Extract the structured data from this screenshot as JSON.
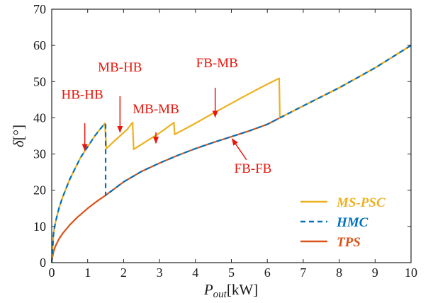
{
  "chart_data": {
    "type": "line",
    "xlim": [
      0,
      10
    ],
    "ylim": [
      0,
      70
    ],
    "xticks": [
      0,
      1,
      2,
      3,
      4,
      5,
      6,
      7,
      8,
      9,
      10
    ],
    "yticks": [
      0,
      10,
      20,
      30,
      40,
      50,
      60,
      70
    ],
    "xlabel_main": "P",
    "xlabel_sub": "out",
    "xlabel_unit": "[kW]",
    "ylabel_symbol": "δ",
    "ylabel_unit": "[°]",
    "grid": false,
    "legend_position": "bottom-right",
    "series": [
      {
        "name": "MS-PSC",
        "color": "#EDB120",
        "dash": "solid",
        "points": [
          [
            0,
            0
          ],
          [
            0.05,
            8
          ],
          [
            0.1,
            11
          ],
          [
            0.2,
            15
          ],
          [
            0.3,
            18
          ],
          [
            0.4,
            20.5
          ],
          [
            0.5,
            23
          ],
          [
            0.6,
            25
          ],
          [
            0.7,
            27
          ],
          [
            0.8,
            29
          ],
          [
            0.9,
            30.5
          ],
          [
            1.0,
            32
          ],
          [
            1.1,
            33.5
          ],
          [
            1.2,
            35
          ],
          [
            1.3,
            36.3
          ],
          [
            1.4,
            37.5
          ],
          [
            1.48,
            38.5
          ],
          [
            1.52,
            31.5
          ],
          [
            1.7,
            33.2
          ],
          [
            1.9,
            35
          ],
          [
            2.1,
            36.8
          ],
          [
            2.25,
            38.7
          ],
          [
            2.28,
            31.3
          ],
          [
            2.6,
            33.3
          ],
          [
            3.0,
            35.8
          ],
          [
            3.4,
            38.7
          ],
          [
            3.42,
            35.4
          ],
          [
            4.0,
            38.5
          ],
          [
            4.5,
            41.3
          ],
          [
            5.0,
            44
          ],
          [
            5.5,
            46.7
          ],
          [
            6.0,
            49.3
          ],
          [
            6.33,
            50.9
          ],
          [
            6.35,
            40
          ],
          [
            7.0,
            43.3
          ],
          [
            8.0,
            48.3
          ],
          [
            9.0,
            53.8
          ],
          [
            10.0,
            60
          ]
        ]
      },
      {
        "name": "HMC",
        "color": "#0072BD",
        "dash": "dashed",
        "points": [
          [
            0,
            0
          ],
          [
            0.05,
            8
          ],
          [
            0.1,
            11
          ],
          [
            0.2,
            15
          ],
          [
            0.3,
            18
          ],
          [
            0.4,
            20.5
          ],
          [
            0.5,
            23
          ],
          [
            0.6,
            25
          ],
          [
            0.7,
            27
          ],
          [
            0.8,
            29
          ],
          [
            0.9,
            30.5
          ],
          [
            1.0,
            32
          ],
          [
            1.1,
            33.5
          ],
          [
            1.2,
            35
          ],
          [
            1.3,
            36.3
          ],
          [
            1.4,
            37.5
          ],
          [
            1.48,
            38.5
          ],
          [
            1.5,
            38
          ],
          [
            1.5,
            18.6
          ],
          [
            2.0,
            22.3
          ],
          [
            2.5,
            25.2
          ],
          [
            3.0,
            27.5
          ],
          [
            3.5,
            29.6
          ],
          [
            4.0,
            31.5
          ],
          [
            4.5,
            33.2
          ],
          [
            5.0,
            34.8
          ],
          [
            5.5,
            36.4
          ],
          [
            6.0,
            38.2
          ],
          [
            6.35,
            40
          ],
          [
            7.0,
            43.3
          ],
          [
            8.0,
            48.3
          ],
          [
            9.0,
            53.8
          ],
          [
            10.0,
            60
          ]
        ]
      },
      {
        "name": "TPS",
        "color": "#D95319",
        "dash": "solid",
        "points": [
          [
            0,
            0
          ],
          [
            0.02,
            1.5
          ],
          [
            0.05,
            3
          ],
          [
            0.1,
            4.5
          ],
          [
            0.2,
            6.5
          ],
          [
            0.3,
            8
          ],
          [
            0.5,
            10.4
          ],
          [
            0.7,
            12.4
          ],
          [
            1.0,
            15
          ],
          [
            1.25,
            16.9
          ],
          [
            1.5,
            18.6
          ],
          [
            2.0,
            22.3
          ],
          [
            2.5,
            25.2
          ],
          [
            3.0,
            27.5
          ],
          [
            3.5,
            29.6
          ],
          [
            4.0,
            31.5
          ],
          [
            4.5,
            33.2
          ],
          [
            5.0,
            34.8
          ],
          [
            5.5,
            36.4
          ],
          [
            6.0,
            38.2
          ],
          [
            6.35,
            40
          ],
          [
            7.0,
            43.3
          ],
          [
            8.0,
            48.3
          ],
          [
            9.0,
            53.8
          ],
          [
            10.0,
            60
          ]
        ]
      }
    ],
    "annotations": [
      {
        "text": "HB-HB",
        "text_at": [
          0.85,
          45.3
        ],
        "arrow_from": [
          0.92,
          38.5
        ],
        "arrow_to": [
          0.92,
          31.0
        ]
      },
      {
        "text": "MB-HB",
        "text_at": [
          1.9,
          52.8
        ],
        "arrow_from": [
          1.9,
          46.0
        ],
        "arrow_to": [
          1.9,
          36.0
        ]
      },
      {
        "text": "MB-MB",
        "text_at": [
          2.9,
          41.3
        ],
        "arrow_from": [
          2.9,
          36.0
        ],
        "arrow_to": [
          2.9,
          33.0
        ]
      },
      {
        "text": "FB-MB",
        "text_at": [
          4.6,
          54.0
        ],
        "arrow_from": [
          4.55,
          48.3
        ],
        "arrow_to": [
          4.55,
          40.2
        ]
      },
      {
        "text": "FB-FB",
        "text_at": [
          5.6,
          24.8
        ],
        "arrow_from": [
          5.42,
          28.4
        ],
        "arrow_to": [
          5.02,
          34.2
        ]
      }
    ],
    "annotation_color": "#E8160C"
  }
}
